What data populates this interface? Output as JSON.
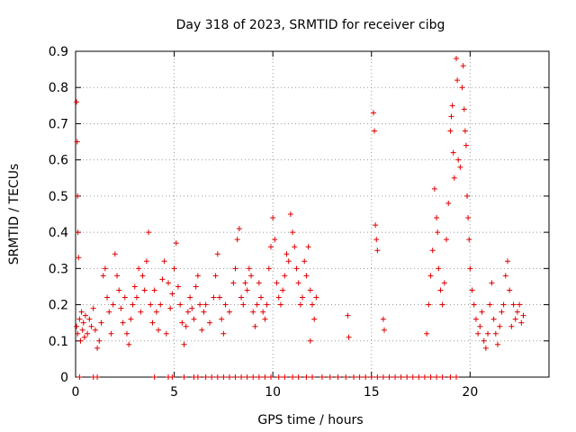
{
  "chart_data": {
    "type": "scatter",
    "title": "Day 318 of 2023, SRMTID for receiver cibg",
    "xlabel": "GPS time / hours",
    "ylabel": "SRMTID / TECUs",
    "xlim": [
      0,
      24
    ],
    "ylim": [
      0,
      0.9
    ],
    "xticks": [
      0,
      5,
      10,
      15,
      20
    ],
    "xtick_labels": [
      "0",
      "5",
      "10",
      "15",
      "20"
    ],
    "yticks": [
      0,
      0.1,
      0.2,
      0.3,
      0.4,
      0.5,
      0.6,
      0.7,
      0.8,
      0.9
    ],
    "ytick_labels": [
      "0",
      "0.1",
      "0.2",
      "0.3",
      "0.4",
      "0.5",
      "0.6",
      "0.7",
      "0.8",
      "0.9"
    ],
    "grid": true,
    "marker": "+",
    "color": "#e00000",
    "series": [
      {
        "name": "SRMTID",
        "points": [
          [
            0.05,
            0.76
          ],
          [
            0.08,
            0.65
          ],
          [
            0.1,
            0.5
          ],
          [
            0.12,
            0.4
          ],
          [
            0.15,
            0.33
          ],
          [
            0.05,
            0.14
          ],
          [
            0.1,
            0.12
          ],
          [
            0.2,
            0.16
          ],
          [
            0.25,
            0.1
          ],
          [
            0.3,
            0.18
          ],
          [
            0.35,
            0.13
          ],
          [
            0.4,
            0.15
          ],
          [
            0.45,
            0.11
          ],
          [
            0.5,
            0.17
          ],
          [
            0.6,
            0.12
          ],
          [
            0.7,
            0.16
          ],
          [
            0.8,
            0.14
          ],
          [
            0.9,
            0.19
          ],
          [
            1.0,
            0.13
          ],
          [
            1.1,
            0.08
          ],
          [
            1.2,
            0.1
          ],
          [
            1.3,
            0.15
          ],
          [
            1.4,
            0.28
          ],
          [
            1.5,
            0.3
          ],
          [
            1.6,
            0.22
          ],
          [
            1.7,
            0.18
          ],
          [
            1.8,
            0.12
          ],
          [
            1.9,
            0.2
          ],
          [
            2.0,
            0.34
          ],
          [
            2.1,
            0.28
          ],
          [
            2.2,
            0.24
          ],
          [
            2.3,
            0.19
          ],
          [
            2.4,
            0.15
          ],
          [
            2.5,
            0.22
          ],
          [
            2.6,
            0.12
          ],
          [
            2.7,
            0.09
          ],
          [
            2.8,
            0.16
          ],
          [
            2.9,
            0.2
          ],
          [
            3.0,
            0.25
          ],
          [
            3.1,
            0.22
          ],
          [
            3.2,
            0.3
          ],
          [
            3.3,
            0.18
          ],
          [
            3.4,
            0.28
          ],
          [
            3.5,
            0.24
          ],
          [
            3.6,
            0.32
          ],
          [
            3.7,
            0.4
          ],
          [
            3.8,
            0.2
          ],
          [
            3.9,
            0.15
          ],
          [
            4.0,
            0.24
          ],
          [
            4.1,
            0.18
          ],
          [
            4.2,
            0.13
          ],
          [
            4.3,
            0.2
          ],
          [
            4.4,
            0.27
          ],
          [
            4.5,
            0.32
          ],
          [
            4.6,
            0.12
          ],
          [
            4.7,
            0.26
          ],
          [
            4.8,
            0.19
          ],
          [
            4.9,
            0.23
          ],
          [
            5.0,
            0.3
          ],
          [
            5.1,
            0.37
          ],
          [
            5.2,
            0.25
          ],
          [
            5.3,
            0.2
          ],
          [
            5.4,
            0.15
          ],
          [
            5.5,
            0.09
          ],
          [
            5.6,
            0.14
          ],
          [
            5.7,
            0.18
          ],
          [
            5.8,
            0.22
          ],
          [
            5.9,
            0.19
          ],
          [
            6.0,
            0.16
          ],
          [
            6.1,
            0.25
          ],
          [
            6.2,
            0.28
          ],
          [
            6.3,
            0.2
          ],
          [
            6.4,
            0.13
          ],
          [
            6.5,
            0.18
          ],
          [
            6.6,
            0.2
          ],
          [
            6.8,
            0.15
          ],
          [
            7.0,
            0.22
          ],
          [
            7.1,
            0.28
          ],
          [
            7.2,
            0.34
          ],
          [
            7.3,
            0.22
          ],
          [
            7.4,
            0.16
          ],
          [
            7.5,
            0.12
          ],
          [
            7.6,
            0.2
          ],
          [
            7.8,
            0.18
          ],
          [
            8.0,
            0.26
          ],
          [
            8.1,
            0.3
          ],
          [
            8.2,
            0.38
          ],
          [
            8.3,
            0.41
          ],
          [
            8.4,
            0.22
          ],
          [
            8.5,
            0.2
          ],
          [
            8.6,
            0.26
          ],
          [
            8.7,
            0.24
          ],
          [
            8.8,
            0.3
          ],
          [
            8.9,
            0.28
          ],
          [
            9.0,
            0.18
          ],
          [
            9.1,
            0.14
          ],
          [
            9.2,
            0.2
          ],
          [
            9.3,
            0.26
          ],
          [
            9.4,
            0.22
          ],
          [
            9.5,
            0.18
          ],
          [
            9.6,
            0.16
          ],
          [
            9.7,
            0.2
          ],
          [
            9.8,
            0.3
          ],
          [
            9.9,
            0.36
          ],
          [
            10.0,
            0.44
          ],
          [
            10.1,
            0.38
          ],
          [
            10.2,
            0.26
          ],
          [
            10.3,
            0.22
          ],
          [
            10.4,
            0.2
          ],
          [
            10.5,
            0.24
          ],
          [
            10.6,
            0.28
          ],
          [
            10.7,
            0.34
          ],
          [
            10.8,
            0.32
          ],
          [
            10.9,
            0.45
          ],
          [
            11.0,
            0.4
          ],
          [
            11.1,
            0.36
          ],
          [
            11.2,
            0.3
          ],
          [
            11.3,
            0.26
          ],
          [
            11.4,
            0.2
          ],
          [
            11.5,
            0.22
          ],
          [
            11.6,
            0.32
          ],
          [
            11.7,
            0.28
          ],
          [
            11.8,
            0.36
          ],
          [
            11.9,
            0.24
          ],
          [
            12.0,
            0.2
          ],
          [
            12.1,
            0.16
          ],
          [
            12.2,
            0.22
          ],
          [
            11.9,
            0.1
          ],
          [
            13.8,
            0.17
          ],
          [
            13.85,
            0.11
          ],
          [
            15.1,
            0.73
          ],
          [
            15.15,
            0.68
          ],
          [
            15.2,
            0.42
          ],
          [
            15.25,
            0.38
          ],
          [
            15.3,
            0.35
          ],
          [
            15.6,
            0.16
          ],
          [
            15.65,
            0.13
          ],
          [
            17.8,
            0.12
          ],
          [
            17.9,
            0.2
          ],
          [
            18.0,
            0.28
          ],
          [
            18.1,
            0.35
          ],
          [
            18.2,
            0.52
          ],
          [
            18.3,
            0.44
          ],
          [
            18.35,
            0.4
          ],
          [
            18.4,
            0.3
          ],
          [
            18.5,
            0.24
          ],
          [
            18.6,
            0.2
          ],
          [
            18.7,
            0.26
          ],
          [
            18.8,
            0.38
          ],
          [
            18.9,
            0.48
          ],
          [
            19.0,
            0.68
          ],
          [
            19.05,
            0.72
          ],
          [
            19.1,
            0.75
          ],
          [
            19.15,
            0.62
          ],
          [
            19.2,
            0.55
          ],
          [
            19.3,
            0.88
          ],
          [
            19.35,
            0.82
          ],
          [
            19.4,
            0.6
          ],
          [
            19.5,
            0.58
          ],
          [
            19.6,
            0.8
          ],
          [
            19.65,
            0.86
          ],
          [
            19.7,
            0.74
          ],
          [
            19.75,
            0.68
          ],
          [
            19.8,
            0.64
          ],
          [
            19.85,
            0.5
          ],
          [
            19.9,
            0.44
          ],
          [
            19.95,
            0.38
          ],
          [
            20.0,
            0.3
          ],
          [
            20.1,
            0.24
          ],
          [
            20.2,
            0.2
          ],
          [
            20.3,
            0.16
          ],
          [
            20.4,
            0.12
          ],
          [
            20.5,
            0.14
          ],
          [
            20.6,
            0.18
          ],
          [
            20.7,
            0.1
          ],
          [
            20.8,
            0.08
          ],
          [
            20.9,
            0.12
          ],
          [
            21.0,
            0.2
          ],
          [
            21.1,
            0.26
          ],
          [
            21.2,
            0.16
          ],
          [
            21.3,
            0.12
          ],
          [
            21.4,
            0.09
          ],
          [
            21.5,
            0.14
          ],
          [
            21.6,
            0.18
          ],
          [
            21.7,
            0.2
          ],
          [
            21.8,
            0.28
          ],
          [
            21.9,
            0.32
          ],
          [
            22.0,
            0.24
          ],
          [
            22.1,
            0.14
          ],
          [
            22.2,
            0.2
          ],
          [
            22.3,
            0.16
          ],
          [
            22.4,
            0.18
          ],
          [
            22.5,
            0.2
          ],
          [
            22.6,
            0.15
          ],
          [
            22.7,
            0.17
          ]
        ]
      }
    ],
    "zero_points_x": [
      0.2,
      0.9,
      1.1,
      4.0,
      4.7,
      4.9,
      5.5,
      6.0,
      6.2,
      6.6,
      6.9,
      7.2,
      7.5,
      7.8,
      8.1,
      8.4,
      8.7,
      9.0,
      9.3,
      9.6,
      9.9,
      10.3,
      10.6,
      11.0,
      11.3,
      11.7,
      12.0,
      12.5,
      12.9,
      13.3,
      13.7,
      14.1,
      14.4,
      14.7,
      15.0,
      15.3,
      15.6,
      15.9,
      16.2,
      16.5,
      16.8,
      17.1,
      17.4,
      17.7,
      18.0,
      18.3,
      18.6,
      19.0,
      19.3
    ]
  }
}
